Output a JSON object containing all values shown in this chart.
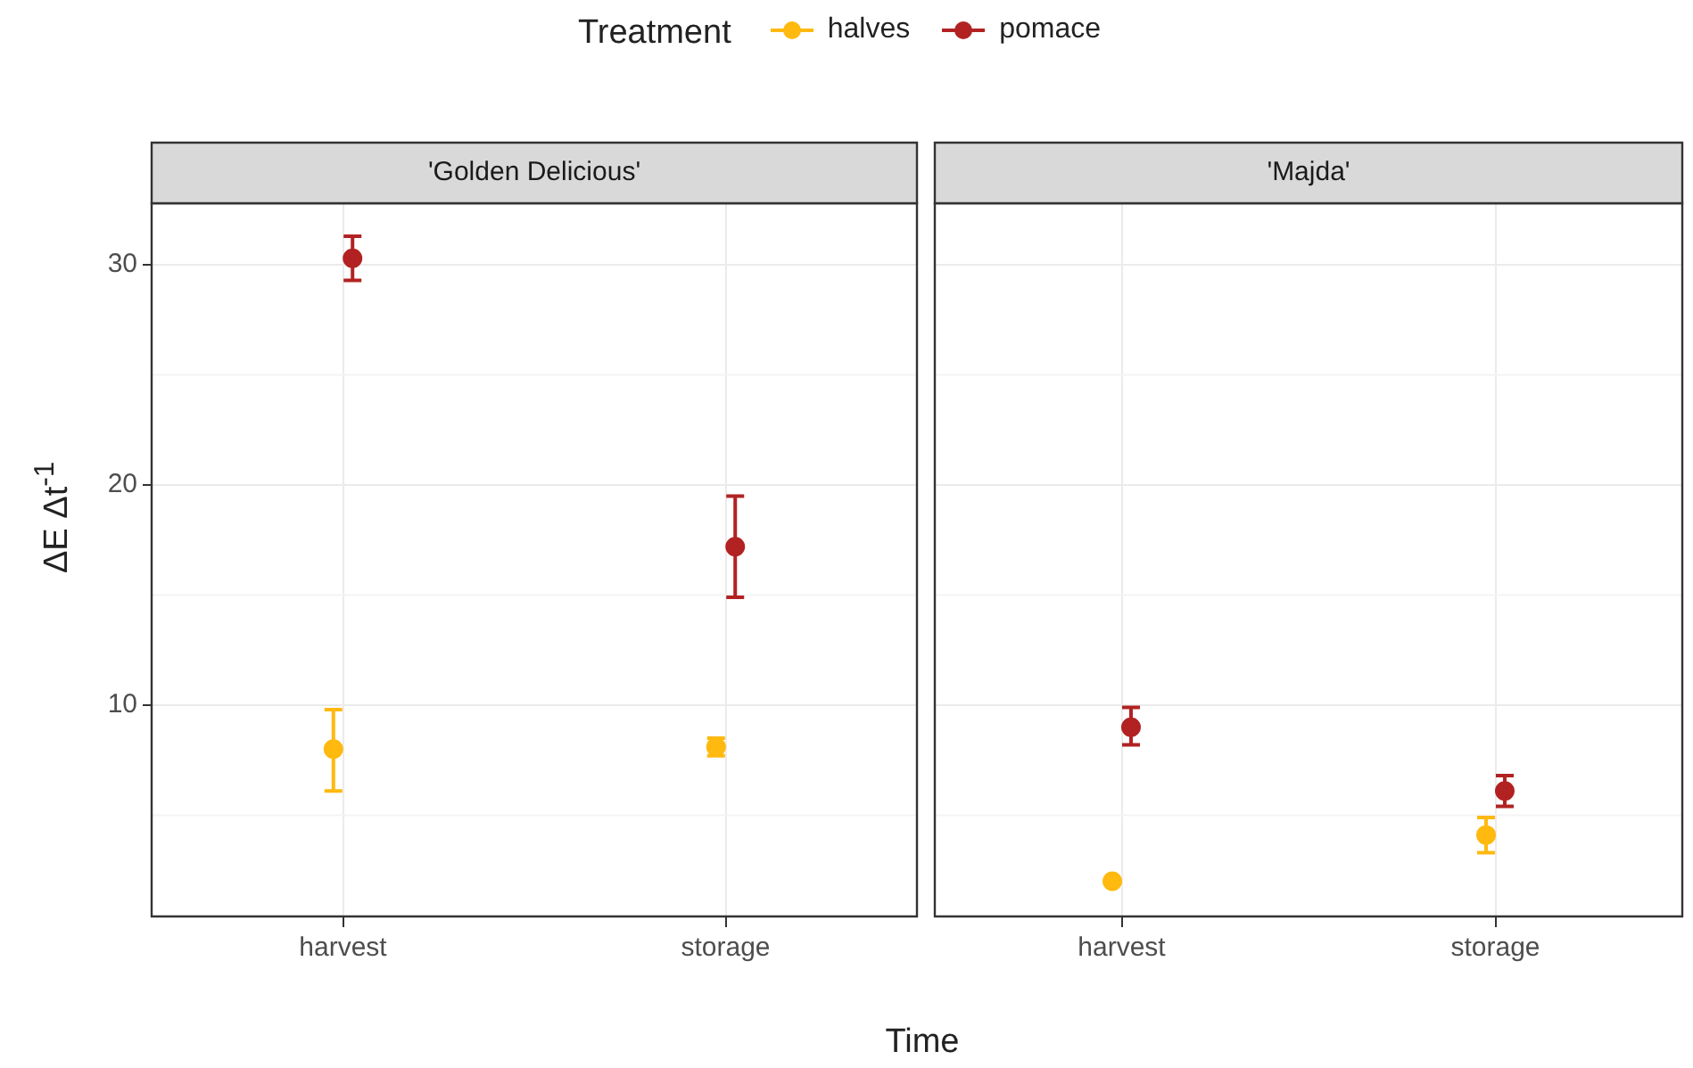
{
  "chart_data": [
    {
      "type": "scatter",
      "title": "'Golden Delicious'",
      "xlabel": "Time",
      "ylabel": "ΔE Δt$^{-1}$",
      "legend_title": "Treatment",
      "legend": "top",
      "grid": true,
      "marker": "circle",
      "categories": [
        "harvest",
        "storage"
      ],
      "ylim": [
        0.4,
        32.8
      ],
      "yticks": [
        10,
        20,
        30
      ],
      "series": [
        {
          "name": "halves",
          "color": "#ffb90f",
          "values": [
            8.0,
            8.1
          ],
          "errors": [
            [
              6.1,
              9.8
            ],
            [
              7.7,
              8.5
            ]
          ]
        },
        {
          "name": "pomace",
          "color": "#b22222",
          "values": [
            30.3,
            17.2
          ],
          "errors": [
            [
              29.3,
              31.3
            ],
            [
              14.9,
              19.5
            ]
          ]
        }
      ]
    },
    {
      "type": "scatter",
      "title": "'Majda'",
      "grid": true,
      "marker": "circle",
      "tick_labels": "x",
      "categories": [
        "harvest",
        "storage"
      ],
      "ylim": [
        0.4,
        32.8
      ],
      "yticks": [
        10,
        20,
        30
      ],
      "series": [
        {
          "name": "halves",
          "color": "#ffb90f",
          "values": [
            2.0,
            4.1
          ],
          "errors": [
            null,
            [
              3.3,
              4.9
            ]
          ]
        },
        {
          "name": "pomace",
          "color": "#b22222",
          "values": [
            9.0,
            6.1
          ],
          "errors": [
            [
              8.2,
              9.9
            ],
            [
              5.4,
              6.8
            ]
          ]
        }
      ]
    }
  ]
}
